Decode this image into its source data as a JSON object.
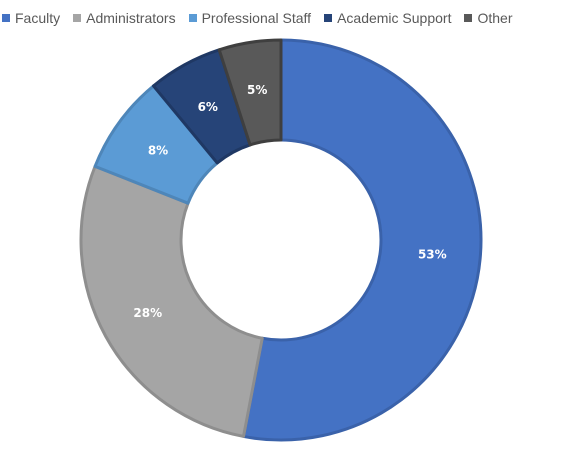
{
  "chart_data": {
    "type": "pie",
    "variant": "doughnut",
    "title": "",
    "categories": [
      "Faculty",
      "Administrators",
      "Professional Staff",
      "Academic Support",
      "Other"
    ],
    "values": [
      53,
      28,
      8,
      6,
      5
    ],
    "data_labels": [
      "53%",
      "28%",
      "8%",
      "6%",
      "5%"
    ],
    "colors": [
      "#4472C4",
      "#A5A5A5",
      "#5B9BD5",
      "#264478",
      "#595959"
    ],
    "border_colors": [
      "#3A62AA",
      "#8E8E8E",
      "#4E86B9",
      "#1F3864",
      "#3F3F3F"
    ],
    "legend": {
      "position": "top",
      "items": [
        {
          "label": "Faculty",
          "color": "#4472C4"
        },
        {
          "label": "Administrators",
          "color": "#A5A5A5"
        },
        {
          "label": "Professional Staff",
          "color": "#5B9BD5"
        },
        {
          "label": "Academic Support",
          "color": "#264478"
        },
        {
          "label": "Other",
          "color": "#595959"
        }
      ]
    }
  }
}
